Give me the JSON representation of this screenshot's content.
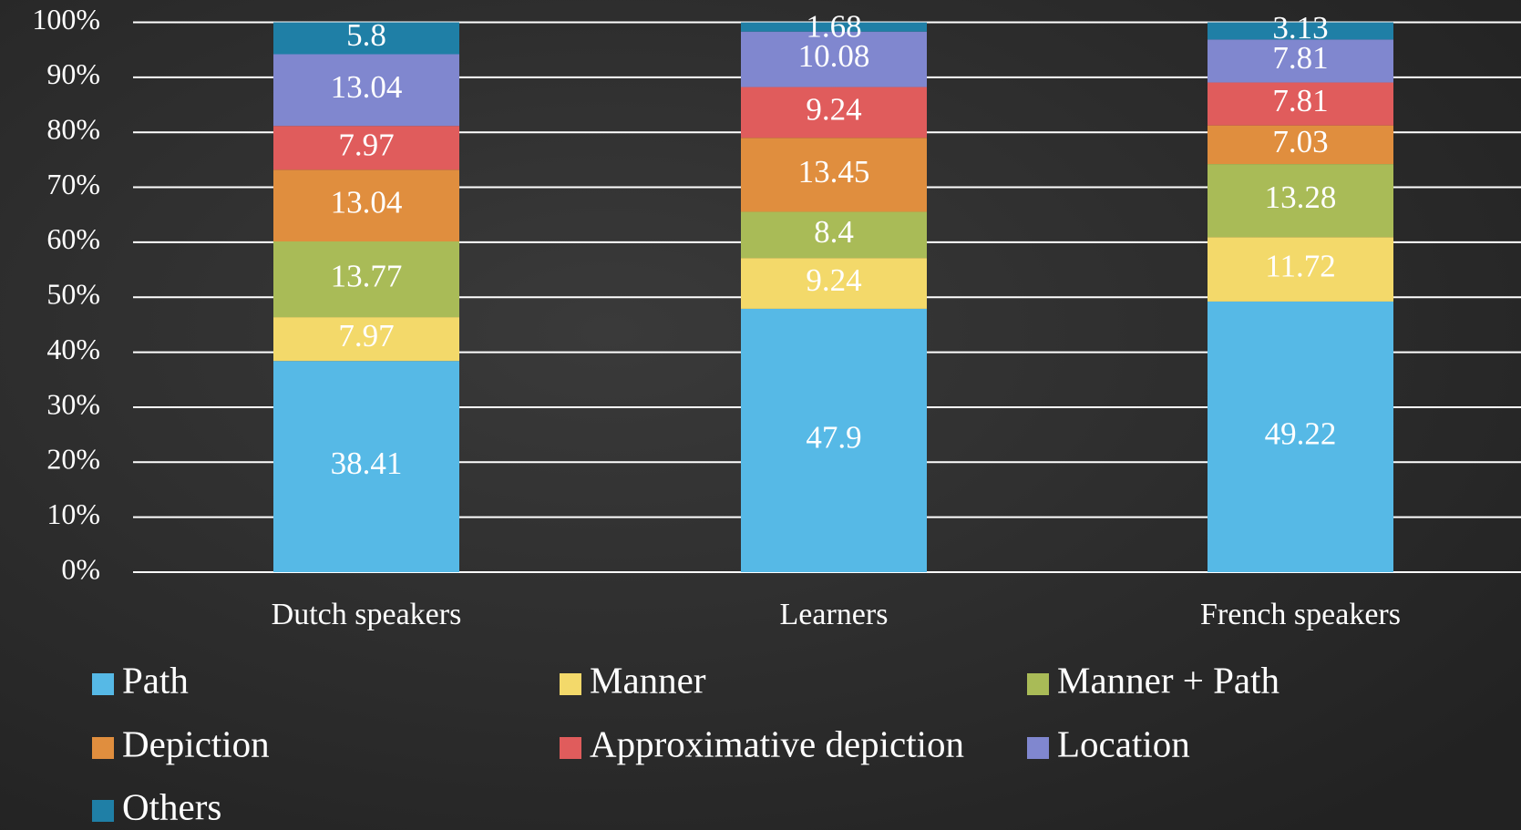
{
  "chart_data": {
    "type": "stacked_bar",
    "categories": [
      "Dutch speakers",
      "Learners",
      "French speakers"
    ],
    "series": [
      {
        "name": "Path",
        "color": "#56b9e6",
        "values": [
          38.41,
          47.9,
          49.22
        ]
      },
      {
        "name": "Manner",
        "color": "#f3d96a",
        "values": [
          7.97,
          9.24,
          11.72
        ]
      },
      {
        "name": "Manner + Path",
        "color": "#a9bb57",
        "values": [
          13.77,
          8.4,
          13.28
        ]
      },
      {
        "name": "Depiction",
        "color": "#e08e3e",
        "values": [
          13.04,
          13.45,
          7.03
        ]
      },
      {
        "name": "Approximative depiction",
        "color": "#e05c5c",
        "values": [
          7.97,
          9.24,
          7.81
        ]
      },
      {
        "name": "Location",
        "color": "#8087cf",
        "values": [
          13.04,
          10.08,
          7.81
        ]
      },
      {
        "name": "Others",
        "color": "#1f7fa6",
        "values": [
          5.8,
          1.68,
          3.13
        ]
      }
    ],
    "ylim": [
      0,
      100
    ],
    "yticks": [
      {
        "value": 0,
        "label": "0%"
      },
      {
        "value": 10,
        "label": "10%"
      },
      {
        "value": 20,
        "label": "20%"
      },
      {
        "value": 30,
        "label": "30%"
      },
      {
        "value": 40,
        "label": "40%"
      },
      {
        "value": 50,
        "label": "50%"
      },
      {
        "value": 60,
        "label": "60%"
      },
      {
        "value": 70,
        "label": "70%"
      },
      {
        "value": 80,
        "label": "80%"
      },
      {
        "value": 90,
        "label": "90%"
      },
      {
        "value": 100,
        "label": "100%"
      }
    ],
    "grid": true,
    "legend": "bottom"
  }
}
